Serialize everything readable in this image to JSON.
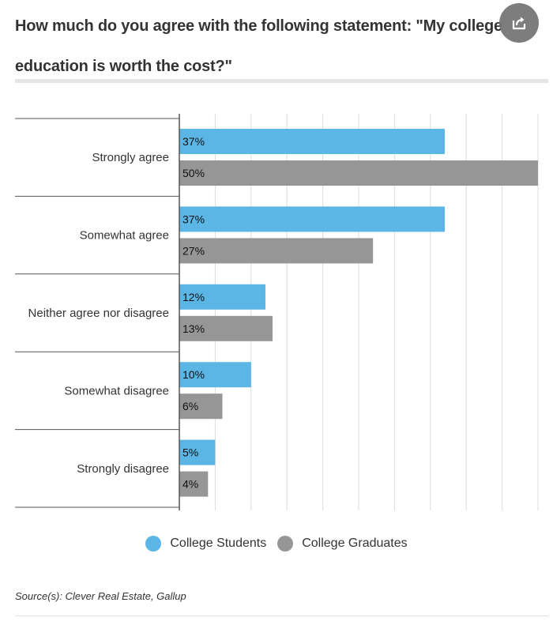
{
  "title": "How much do you agree with the following statement:  \"My college education is worth the cost?\"",
  "share_icon": "share-icon",
  "source": "Source(s): Clever Real Estate, Gallup",
  "colors": {
    "students": "#5bb5e5",
    "graduates": "#969696",
    "axis": "#555555",
    "grid": "#dddddd"
  },
  "chart_data": {
    "type": "bar",
    "orientation": "horizontal",
    "title": "How much do you agree with the following statement:  \"My college education is worth the cost?\"",
    "categories": [
      "Strongly agree",
      "Somewhat agree",
      "Neither agree nor disagree",
      "Somewhat disagree",
      "Strongly disagree"
    ],
    "series": [
      {
        "name": "College Students",
        "values": [
          37,
          37,
          12,
          10,
          5
        ],
        "labels": [
          "37%",
          "37%",
          "12%",
          "10%",
          "5%"
        ],
        "color": "#5bb5e5"
      },
      {
        "name": "College Graduates",
        "values": [
          50,
          27,
          13,
          6,
          4
        ],
        "labels": [
          "50%",
          "27%",
          "13%",
          "6%",
          "4%"
        ],
        "color": "#969696"
      }
    ],
    "xlim": [
      0,
      50
    ],
    "grid": true,
    "legend_position": "bottom"
  }
}
